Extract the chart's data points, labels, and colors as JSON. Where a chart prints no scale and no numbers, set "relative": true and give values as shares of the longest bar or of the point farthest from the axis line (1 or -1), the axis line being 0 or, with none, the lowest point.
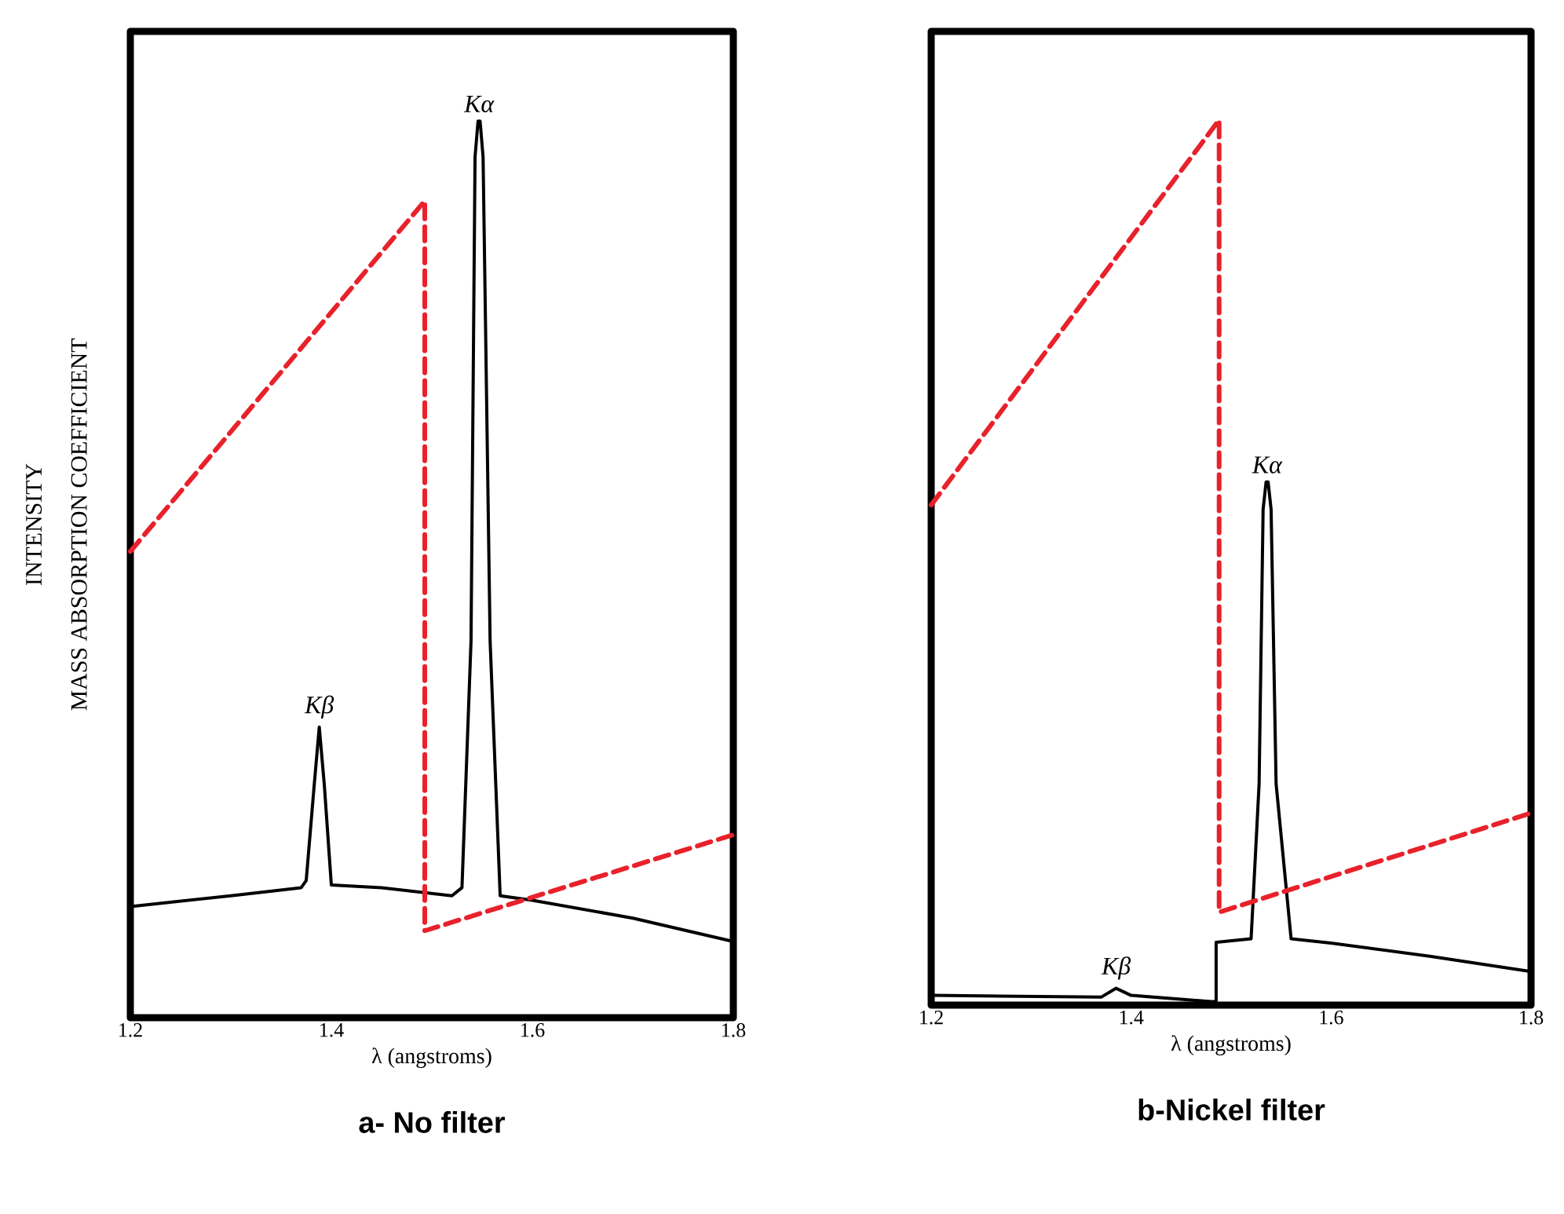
{
  "chart_data": [
    {
      "type": "line",
      "title": "a- No filter",
      "xlabel": "λ (angstroms)",
      "ylabel": "INTENSITY",
      "relative": true,
      "xlim": [
        1.2,
        1.8
      ],
      "xticks": [
        1.2,
        1.4,
        1.6,
        1.8
      ],
      "series": [
        {
          "color": "#000000",
          "line_style": "solid",
          "x": [
            1.2,
            1.3,
            1.37,
            1.375,
            1.383,
            1.388,
            1.393,
            1.4,
            1.45,
            1.52,
            1.53,
            1.539,
            1.543,
            1.546,
            1.548,
            1.551,
            1.558,
            1.568,
            1.6,
            1.7,
            1.8
          ],
          "values": [
            0.124,
            0.136,
            0.145,
            0.153,
            0.26,
            0.324,
            0.26,
            0.148,
            0.145,
            0.136,
            0.145,
            0.42,
            0.96,
            1.0,
            1.0,
            0.96,
            0.42,
            0.136,
            0.131,
            0.111,
            0.085
          ]
        },
        {
          "color": "#e8212b",
          "line_style": "dashed",
          "x": [
            1.2,
            1.493,
            1.493,
            1.8
          ],
          "values": [
            0.52,
            0.911,
            0.097,
            0.204
          ]
        }
      ],
      "annotations": [
        {
          "text": "Kα",
          "x": 1.547,
          "y": 1.0
        },
        {
          "text": "Kβ",
          "x": 1.388,
          "y": 0.324
        },
        "MASS ABSORPTION COEFFICIENT"
      ]
    },
    {
      "type": "line",
      "title": "b-Nickel filter",
      "xlabel": "λ (angstroms)",
      "relative": true,
      "xlim": [
        1.2,
        1.8
      ],
      "xticks": [
        1.2,
        1.4,
        1.6,
        1.8
      ],
      "series": [
        {
          "color": "#000000",
          "line_style": "solid",
          "x": [
            1.2,
            1.37,
            1.385,
            1.4,
            1.48,
            1.485,
            1.485,
            1.52,
            1.528,
            1.532,
            1.535,
            1.537,
            1.54,
            1.545,
            1.56,
            1.6,
            1.7,
            1.8
          ],
          "values": [
            0.011,
            0.009,
            0.019,
            0.011,
            0.004,
            0.004,
            0.071,
            0.075,
            0.25,
            0.56,
            0.591,
            0.591,
            0.56,
            0.25,
            0.075,
            0.07,
            0.055,
            0.038
          ]
        },
        {
          "color": "#e8212b",
          "line_style": "dashed",
          "x": [
            1.2,
            1.488,
            1.488,
            1.8
          ],
          "values": [
            0.565,
            1.0,
            0.105,
            0.217
          ]
        }
      ],
      "annotations": [
        {
          "text": "Kα",
          "x": 1.536,
          "y": 0.591
        },
        {
          "text": "Kβ",
          "x": 1.385,
          "y": 0.019
        }
      ]
    }
  ]
}
